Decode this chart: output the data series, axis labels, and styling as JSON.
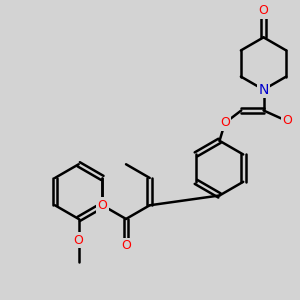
{
  "bg_color": "#d3d3d3",
  "bond_color": "#000000",
  "o_color": "#ff0000",
  "n_color": "#0000cc",
  "bond_width": 1.8,
  "figsize": [
    3.0,
    3.0
  ],
  "dpi": 100,
  "xlim": [
    0,
    10
  ],
  "ylim": [
    0,
    10
  ]
}
